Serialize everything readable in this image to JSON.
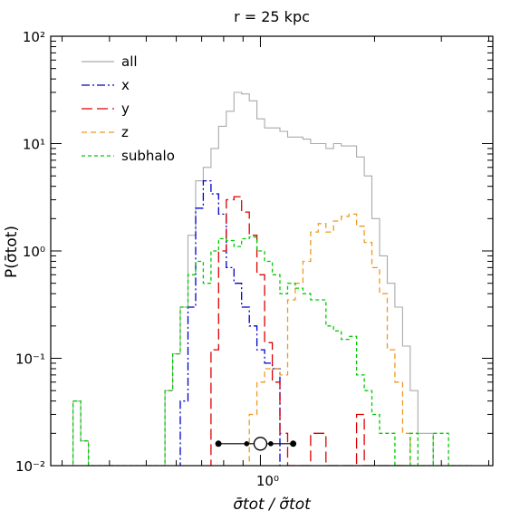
{
  "chart_data": {
    "type": "line",
    "title": "r = 25 kpc",
    "xlabel": "σ̄tot / σ̃tot",
    "ylabel": "P(σ̄tot)",
    "xscale": "log",
    "yscale": "log",
    "xlim": [
      0.28,
      4.1
    ],
    "ylim": [
      0.01,
      100
    ],
    "yticks": [
      {
        "value": 100,
        "label": "10²"
      },
      {
        "value": 10,
        "label": "10¹"
      },
      {
        "value": 1,
        "label": "10⁰"
      },
      {
        "value": 0.1,
        "label": "10⁻¹"
      },
      {
        "value": 0.01,
        "label": "10⁻²"
      }
    ],
    "xticks": [
      {
        "value": 1,
        "label": "10⁰"
      }
    ],
    "legend_position": "top-left",
    "series": [
      {
        "name": "all",
        "color": "#aaaaaa",
        "dash": "solid",
        "bin_edges": [
          0.3206,
          0.3359,
          0.3519,
          0.3686,
          0.3862,
          0.4046,
          0.4238,
          0.444,
          0.4652,
          0.4873,
          0.5105,
          0.5348,
          0.5603,
          0.587,
          0.6149,
          0.6442,
          0.6749,
          0.7071,
          0.7408,
          0.776,
          0.813,
          0.8517,
          0.8923,
          0.9348,
          0.9793,
          1.0259,
          1.0748,
          1.126,
          1.1796,
          1.2358,
          1.2946,
          1.3563,
          1.4209,
          1.4886,
          1.5594,
          1.6337,
          1.7115,
          1.7931,
          1.8785,
          1.9679,
          2.0617,
          2.1599,
          2.2627,
          2.3705,
          2.4834,
          2.6017,
          2.7256,
          2.8554,
          2.9914,
          3.1339,
          3.2831,
          3.4395,
          3.6033
        ],
        "values": [
          0.04,
          0.017,
          0.01,
          0.01,
          0.01,
          0.01,
          0.01,
          0.01,
          0.01,
          0.01,
          0.01,
          0.01,
          0.05,
          0.11,
          0.3,
          1.4,
          4.5,
          6.0,
          9.0,
          14.5,
          20,
          30,
          29,
          25,
          17,
          14,
          14,
          13,
          11.5,
          11.5,
          11,
          10,
          10,
          9.0,
          10,
          9.5,
          9.5,
          7.5,
          5.0,
          2.0,
          0.9,
          0.5,
          0.3,
          0.13,
          0.05,
          0.02,
          0.02,
          0.01,
          0.01,
          0.01,
          0.01,
          0.01
        ]
      },
      {
        "name": "x",
        "color": "#0000cc",
        "dash": "dashdot",
        "bin_edges": [
          0.6149,
          0.6442,
          0.6749,
          0.7071,
          0.7408,
          0.776,
          0.813,
          0.8517,
          0.8923,
          0.9348,
          0.9793,
          1.0259,
          1.0748,
          1.126
        ],
        "values": [
          0.04,
          0.3,
          2.5,
          4.5,
          3.4,
          2.2,
          0.7,
          0.5,
          0.3,
          0.2,
          0.12,
          0.09,
          0.08
        ]
      },
      {
        "name": "y",
        "color": "#dd0000",
        "dash": "longdash",
        "bin_edges": [
          0.7408,
          0.776,
          0.813,
          0.8517,
          0.8923,
          0.9348,
          0.9793,
          1.0259,
          1.0748,
          1.126,
          1.1796,
          1.2358,
          1.2946,
          1.3563,
          1.4209,
          1.4886,
          1.5594,
          1.6337,
          1.7115,
          1.7931,
          1.8785,
          1.9679,
          2.0617,
          2.1599,
          2.2627,
          2.3705
        ],
        "values": [
          0.12,
          1.0,
          3.0,
          3.2,
          2.3,
          1.4,
          0.6,
          0.14,
          0.06,
          0.02,
          0.01,
          0.01,
          0.01,
          0.02,
          0.02,
          0.01,
          0.01,
          0.01,
          0.01,
          0.03,
          0.01,
          0.01,
          0.01,
          0.01,
          0.01
        ]
      },
      {
        "name": "z",
        "color": "#ee9922",
        "dash": "dashed",
        "bin_edges": [
          0.9348,
          0.9793,
          1.0259,
          1.0748,
          1.126,
          1.1796,
          1.2358,
          1.2946,
          1.3563,
          1.4209,
          1.4886,
          1.5594,
          1.6337,
          1.7115,
          1.7931,
          1.8785,
          1.9679,
          2.0617,
          2.1599,
          2.2627,
          2.3705,
          2.4834,
          2.6017
        ],
        "values": [
          0.03,
          0.06,
          0.08,
          0.08,
          0.07,
          0.35,
          0.5,
          0.8,
          1.5,
          1.8,
          1.5,
          1.9,
          2.1,
          2.2,
          1.7,
          1.2,
          0.7,
          0.4,
          0.12,
          0.06,
          0.02,
          0.01
        ]
      },
      {
        "name": "subhalo",
        "color": "#00cc00",
        "dash": "shortdash",
        "bin_edges": [
          0.3206,
          0.3359,
          0.3519,
          0.3686,
          0.3862,
          0.4046,
          0.4238,
          0.444,
          0.4652,
          0.4873,
          0.5105,
          0.5348,
          0.5603,
          0.587,
          0.6149,
          0.6442,
          0.6749,
          0.7071,
          0.7408,
          0.776,
          0.813,
          0.8517,
          0.8923,
          0.9348,
          0.9793,
          1.0259,
          1.0748,
          1.126,
          1.1796,
          1.2358,
          1.2946,
          1.3563,
          1.4209,
          1.4886,
          1.5594,
          1.6337,
          1.7115,
          1.7931,
          1.8785,
          1.9679,
          2.0617,
          2.1599,
          2.2627,
          2.3705,
          2.4834,
          2.6017,
          2.7256,
          2.8554,
          2.9914,
          3.1339,
          3.2831,
          3.4395,
          3.6033
        ],
        "values": [
          0.04,
          0.017,
          0.01,
          0.01,
          0.01,
          0.01,
          0.01,
          0.01,
          0.01,
          0.01,
          0.01,
          0.01,
          0.05,
          0.11,
          0.3,
          0.6,
          0.8,
          0.5,
          1.0,
          1.3,
          1.25,
          1.1,
          1.3,
          1.35,
          1.0,
          0.8,
          0.6,
          0.4,
          0.5,
          0.45,
          0.4,
          0.35,
          0.35,
          0.2,
          0.18,
          0.15,
          0.16,
          0.07,
          0.05,
          0.03,
          0.02,
          0.02,
          0.01,
          0.01,
          0.02,
          0.01,
          0.01,
          0.02,
          0.02,
          0.01,
          0.01,
          0.01
        ]
      }
    ],
    "error_marker": {
      "y": 0.016,
      "center": 1.0,
      "inner": [
        0.92,
        1.065
      ],
      "outer": [
        0.775,
        1.22
      ]
    }
  }
}
